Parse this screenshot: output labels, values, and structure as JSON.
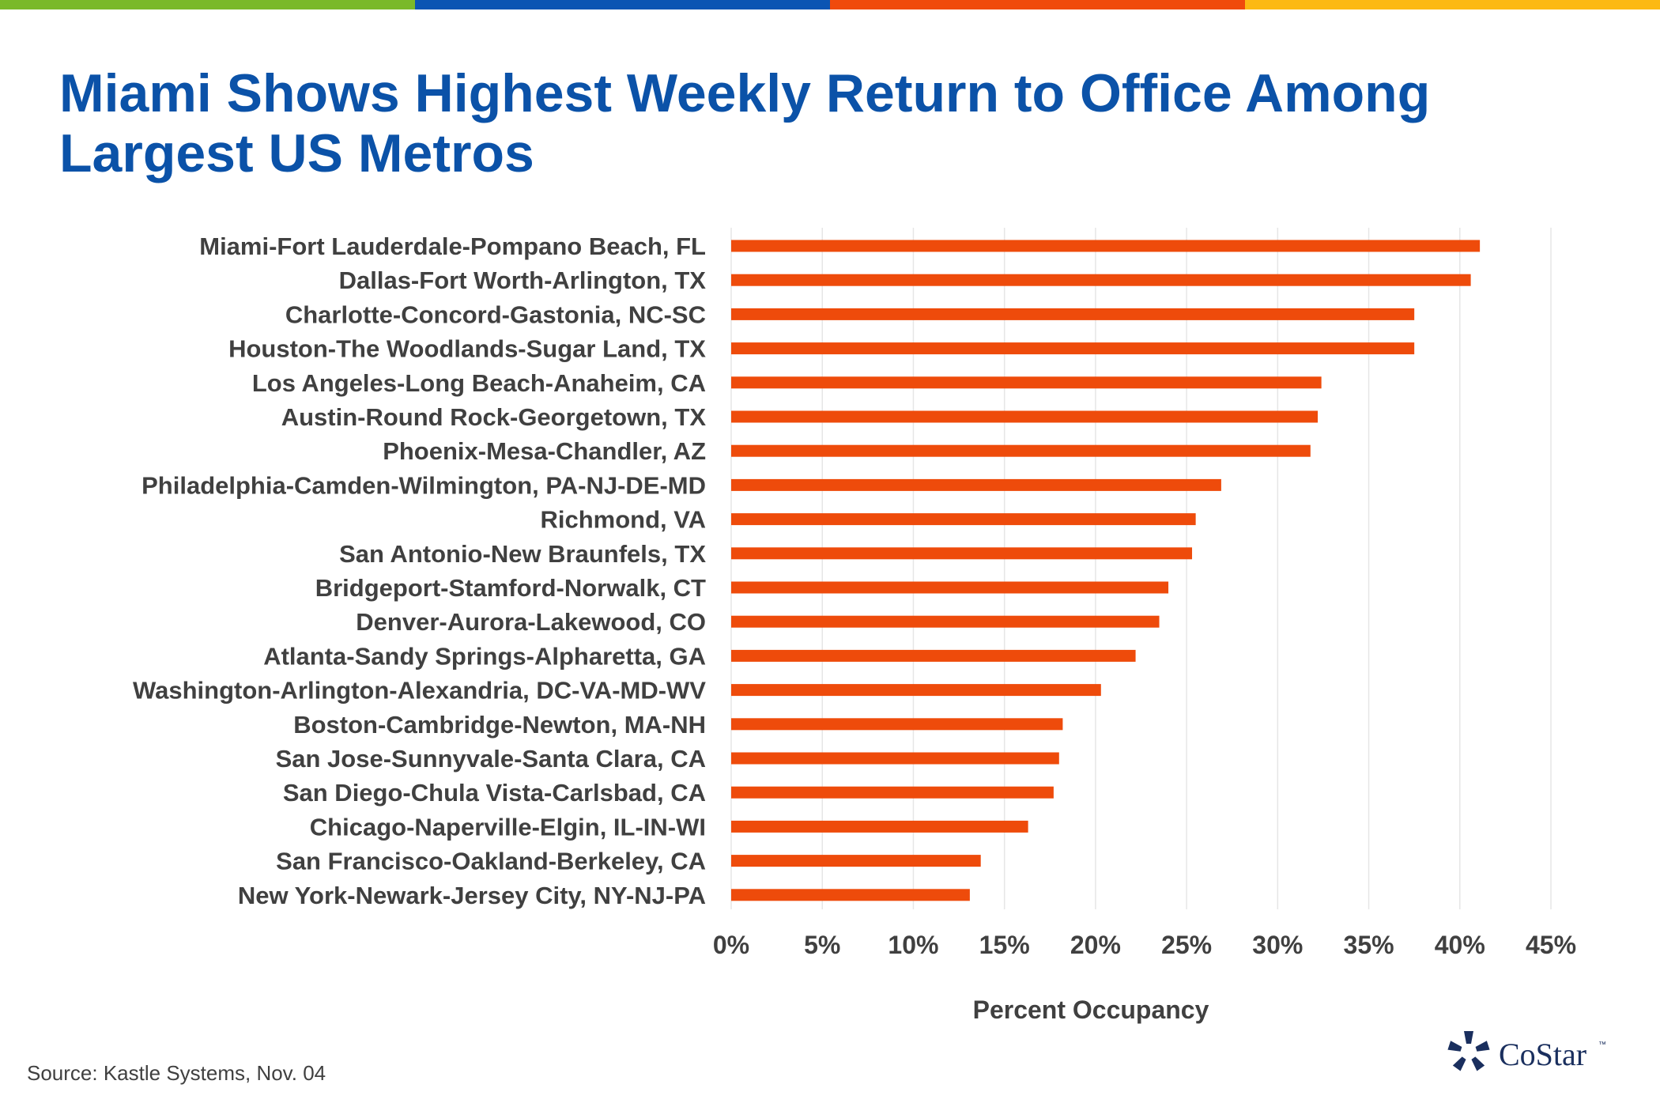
{
  "title": "Miami Shows Highest Weekly Return to Office Among Largest US Metros",
  "source": "Source: Kastle Systems, Nov. 04",
  "brand": {
    "name": "CoStar",
    "trademark": "™",
    "stripe_colors": [
      "#7ab929",
      "#0b55b3",
      "#f04a0c",
      "#fcb913"
    ]
  },
  "colors": {
    "bar": "#ee4b0b",
    "title": "#0b52a8",
    "label": "#404040",
    "grid": "#e6e6e6"
  },
  "chart_data": {
    "type": "bar",
    "orientation": "horizontal",
    "xlabel": "Percent Occupancy",
    "ylabel": "",
    "xlim": [
      0,
      45
    ],
    "xticks": [
      "0%",
      "5%",
      "10%",
      "15%",
      "20%",
      "25%",
      "30%",
      "35%",
      "40%",
      "45%"
    ],
    "grid": true,
    "categories": [
      "Miami-Fort Lauderdale-Pompano Beach, FL",
      "Dallas-Fort Worth-Arlington, TX",
      "Charlotte-Concord-Gastonia, NC-SC",
      "Houston-The Woodlands-Sugar Land, TX",
      "Los Angeles-Long Beach-Anaheim, CA",
      "Austin-Round Rock-Georgetown, TX",
      "Phoenix-Mesa-Chandler, AZ",
      "Philadelphia-Camden-Wilmington, PA-NJ-DE-MD",
      "Richmond, VA",
      "San Antonio-New Braunfels, TX",
      "Bridgeport-Stamford-Norwalk, CT",
      "Denver-Aurora-Lakewood, CO",
      "Atlanta-Sandy Springs-Alpharetta, GA",
      "Washington-Arlington-Alexandria, DC-VA-MD-WV",
      "Boston-Cambridge-Newton, MA-NH",
      "San Jose-Sunnyvale-Santa Clara, CA",
      "San Diego-Chula Vista-Carlsbad, CA",
      "Chicago-Naperville-Elgin, IL-IN-WI",
      "San Francisco-Oakland-Berkeley, CA",
      "New York-Newark-Jersey City, NY-NJ-PA"
    ],
    "values": [
      41.1,
      40.6,
      37.5,
      37.5,
      32.4,
      32.2,
      31.8,
      26.9,
      25.5,
      25.3,
      24.0,
      23.5,
      22.2,
      20.3,
      18.2,
      18.0,
      17.7,
      16.3,
      13.7,
      13.1
    ]
  }
}
